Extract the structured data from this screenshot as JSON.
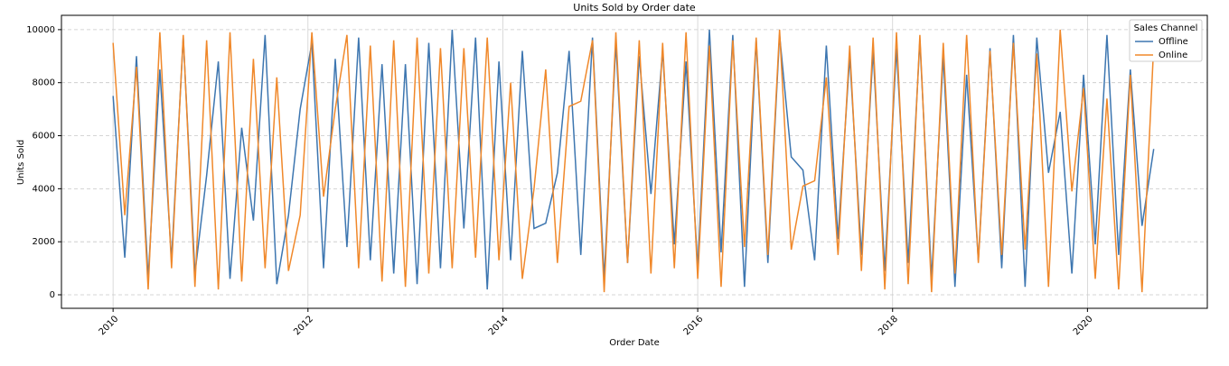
{
  "chart_data": {
    "type": "line",
    "title": "Units Sold by Order date",
    "x_label": "Order Date",
    "y_label": "Units Sold",
    "x": [
      2010,
      2010.12,
      2010.24,
      2010.36,
      2010.48,
      2010.6,
      2010.72,
      2010.84,
      2010.96,
      2011.08,
      2011.2,
      2011.32,
      2011.44,
      2011.56,
      2011.68,
      2011.8,
      2011.92,
      2012.04,
      2012.16,
      2012.28,
      2012.4,
      2012.52,
      2012.64,
      2012.76,
      2012.88,
      2013,
      2013.12,
      2013.24,
      2013.36,
      2013.48,
      2013.6,
      2013.72,
      2013.84,
      2013.96,
      2014.08,
      2014.2,
      2014.32,
      2014.44,
      2014.56,
      2014.68,
      2014.8,
      2014.92,
      2015.04,
      2015.16,
      2015.28,
      2015.4,
      2015.52,
      2015.64,
      2015.76,
      2015.88,
      2016,
      2016.12,
      2016.24,
      2016.36,
      2016.48,
      2016.6,
      2016.72,
      2016.84,
      2016.96,
      2017.08,
      2017.2,
      2017.32,
      2017.44,
      2017.56,
      2017.68,
      2017.8,
      2017.92,
      2018.04,
      2018.16,
      2018.28,
      2018.4,
      2018.52,
      2018.64,
      2018.76,
      2018.88,
      2019,
      2019.12,
      2019.24,
      2019.36,
      2019.48,
      2019.6,
      2019.72,
      2019.84,
      2019.96,
      2020.08,
      2020.2,
      2020.32,
      2020.44,
      2020.56,
      2020.68
    ],
    "series": [
      {
        "name": "Offline",
        "color": "#3d76b0",
        "values": [
          7500,
          1400,
          9000,
          600,
          8500,
          1300,
          9700,
          800,
          4500,
          8800,
          600,
          6300,
          2800,
          9800,
          400,
          3000,
          7000,
          9500,
          1000,
          8900,
          1800,
          9700,
          1300,
          8700,
          800,
          8700,
          400,
          9500,
          1000,
          10000,
          2500,
          9700,
          200,
          8800,
          1300,
          9200,
          2500,
          2700,
          4600,
          9200,
          1500,
          9700,
          600,
          9500,
          1200,
          9000,
          3800,
          9200,
          1900,
          8800,
          1000,
          10000,
          1600,
          9800,
          300,
          9600,
          1200,
          9800,
          5200,
          4700,
          1300,
          9400,
          2100,
          9000,
          1500,
          9200,
          900,
          9300,
          1200,
          9600,
          600,
          9000,
          300,
          8300,
          1300,
          9300,
          1000,
          9800,
          300,
          9700,
          4600,
          6900,
          800,
          8300,
          1900,
          9800,
          1500,
          8500,
          2600,
          5500
        ]
      },
      {
        "name": "Online",
        "color": "#f0882a",
        "values": [
          9500,
          3000,
          8600,
          200,
          9900,
          1000,
          9800,
          300,
          9600,
          200,
          9900,
          500,
          8900,
          1000,
          8200,
          900,
          3000,
          9900,
          3700,
          7000,
          9800,
          1000,
          9400,
          500,
          9600,
          300,
          9700,
          800,
          9300,
          1000,
          9300,
          1400,
          9700,
          1300,
          8000,
          600,
          4000,
          8500,
          1200,
          7100,
          7300,
          9600,
          100,
          9900,
          1200,
          9600,
          800,
          9500,
          1000,
          9900,
          600,
          9400,
          300,
          9600,
          1800,
          9700,
          1500,
          10000,
          1700,
          4100,
          4300,
          8200,
          1500,
          9400,
          900,
          9700,
          200,
          9900,
          400,
          9800,
          100,
          9500,
          800,
          9800,
          1200,
          9200,
          1500,
          9500,
          1700,
          9100,
          300,
          10000,
          3900,
          7800,
          600,
          7400,
          200,
          8300,
          100,
          9400
        ]
      }
    ],
    "xlim": [
      2009.47,
      2021.23
    ],
    "xticks": [
      2010,
      2012,
      2014,
      2016,
      2018,
      2020
    ],
    "ylim": [
      -510,
      10540
    ],
    "yticks": [
      0,
      2000,
      4000,
      6000,
      8000,
      10000
    ],
    "grid": true,
    "legend_title": "Sales Channel",
    "legend_position": "upper right"
  }
}
